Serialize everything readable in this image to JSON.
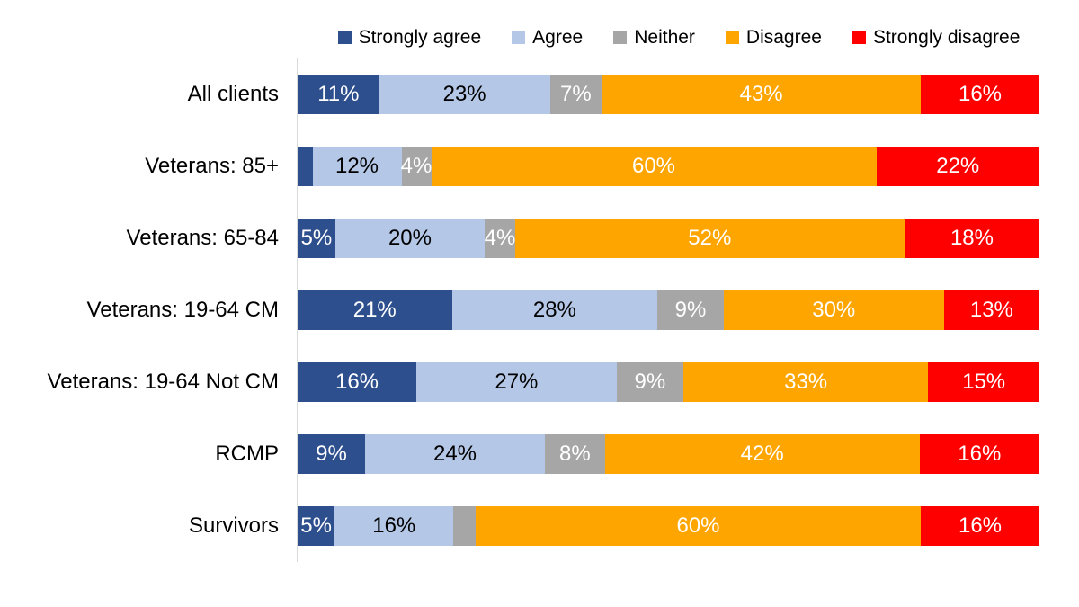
{
  "chart_data": {
    "type": "bar",
    "variant": "100-percent-stacked-horizontal",
    "title": "",
    "xlabel": "",
    "ylabel": "",
    "xlim": [
      0,
      100
    ],
    "grid": false,
    "legend_position": "top",
    "series_meta": [
      {
        "name": "Strongly agree",
        "color": "#2E4F8E",
        "label_color": "#FFFFFF"
      },
      {
        "name": "Agree",
        "color": "#B4C7E7",
        "label_color": "#000000"
      },
      {
        "name": "Neither",
        "color": "#A6A6A6",
        "label_color": "#FFFFFF"
      },
      {
        "name": "Disagree",
        "color": "#FFA500",
        "label_color": "#FFFFFF"
      },
      {
        "name": "Strongly disagree",
        "color": "#FF0000",
        "label_color": "#FFFFFF"
      }
    ],
    "categories": [
      "All clients",
      "Veterans: 85+",
      "Veterans: 65-84",
      "Veterans: 19-64 CM",
      "Veterans: 19-64 Not CM",
      "RCMP",
      "Survivors"
    ],
    "rows": [
      {
        "category": "All clients",
        "values": [
          11,
          23,
          7,
          43,
          16
        ],
        "labels": [
          "11%",
          "23%",
          "7%",
          "43%",
          "16%"
        ]
      },
      {
        "category": "Veterans: 85+",
        "values": [
          2,
          12,
          4,
          60,
          22
        ],
        "labels": [
          "",
          "12%",
          "4%",
          "60%",
          "22%"
        ]
      },
      {
        "category": "Veterans: 65-84",
        "values": [
          5,
          20,
          4,
          52,
          18
        ],
        "labels": [
          "5%",
          "20%",
          "4%",
          "52%",
          "18%"
        ]
      },
      {
        "category": "Veterans: 19-64 CM",
        "values": [
          21,
          28,
          9,
          30,
          13
        ],
        "labels": [
          "21%",
          "28%",
          "9%",
          "30%",
          "13%"
        ]
      },
      {
        "category": "Veterans: 19-64 Not CM",
        "values": [
          16,
          27,
          9,
          33,
          15
        ],
        "labels": [
          "16%",
          "27%",
          "9%",
          "33%",
          "15%"
        ]
      },
      {
        "category": "RCMP",
        "values": [
          9,
          24,
          8,
          42,
          16
        ],
        "labels": [
          "9%",
          "24%",
          "8%",
          "42%",
          "16%"
        ]
      },
      {
        "category": "Survivors",
        "values": [
          5,
          16,
          3,
          60,
          16
        ],
        "labels": [
          "5%",
          "16%",
          "",
          "60%",
          "16%"
        ]
      }
    ]
  },
  "style": {
    "background": "#FFFFFF",
    "axis_line_color": "#D9D9D9",
    "text_color": "#000000"
  }
}
